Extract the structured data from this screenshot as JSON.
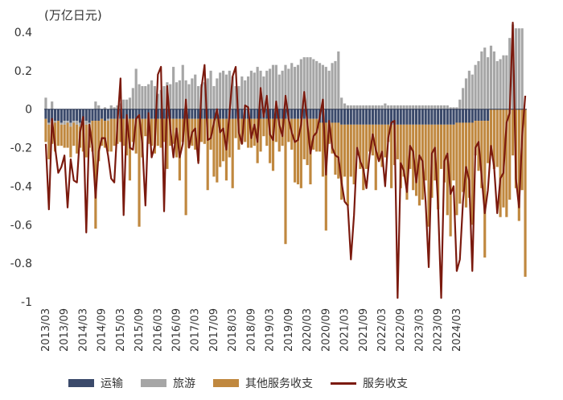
{
  "chart_data": {
    "type": "bar",
    "title": "",
    "unit_label": "(万亿日元)",
    "ylim": [
      -1.0,
      0.5
    ],
    "yticks": [
      0.4,
      0.2,
      0,
      -0.2,
      -0.4,
      -0.6,
      -0.8,
      -1
    ],
    "ytick_labels": [
      "0.4",
      "0.2",
      "0",
      "-0.2",
      "-0.4",
      "-0.6",
      "-0.8",
      "-1"
    ],
    "x_labels": [
      "2013/03",
      "2013/09",
      "2014/03",
      "2014/09",
      "2015/03",
      "2015/09",
      "2016/03",
      "2016/09",
      "2017/03",
      "2017/09",
      "2018/03",
      "2018/09",
      "2019/03",
      "2019/09",
      "2020/03",
      "2020/09",
      "2021/03",
      "2021/09",
      "2022/03",
      "2022/09",
      "2023/03",
      "2023/09",
      "2024/03"
    ],
    "series": [
      {
        "name": "运输",
        "kind": "stacked-bar",
        "color": "#3b4a6b"
      },
      {
        "name": "旅游",
        "kind": "stacked-bar",
        "color": "#a6a6a6"
      },
      {
        "name": "其他服务收支",
        "kind": "stacked-bar",
        "color": "#c0883f"
      },
      {
        "name": "服务收支",
        "kind": "line",
        "color": "#7b1a0e"
      }
    ],
    "series_values": {
      "transport": [
        -0.05,
        -0.07,
        -0.06,
        -0.06,
        -0.06,
        -0.07,
        -0.06,
        -0.06,
        -0.07,
        -0.06,
        -0.06,
        -0.07,
        -0.06,
        -0.06,
        -0.07,
        -0.06,
        -0.06,
        -0.06,
        -0.05,
        -0.06,
        -0.05,
        -0.05,
        -0.05,
        -0.05,
        -0.05,
        -0.05,
        -0.05,
        -0.05,
        -0.05,
        -0.05,
        -0.05,
        -0.05,
        -0.05,
        -0.05,
        -0.05,
        -0.05,
        -0.05,
        -0.05,
        -0.05,
        -0.05,
        -0.05,
        -0.05,
        -0.05,
        -0.05,
        -0.05,
        -0.05,
        -0.05,
        -0.05,
        -0.05,
        -0.05,
        -0.05,
        -0.05,
        -0.05,
        -0.05,
        -0.05,
        -0.05,
        -0.05,
        -0.05,
        -0.05,
        -0.05,
        -0.05,
        -0.05,
        -0.05,
        -0.05,
        -0.05,
        -0.05,
        -0.05,
        -0.05,
        -0.05,
        -0.05,
        -0.05,
        -0.05,
        -0.05,
        -0.05,
        -0.05,
        -0.05,
        -0.05,
        -0.05,
        -0.05,
        -0.05,
        -0.05,
        -0.05,
        -0.05,
        -0.05,
        -0.05,
        -0.05,
        -0.05,
        -0.05,
        -0.07,
        -0.07,
        -0.07,
        -0.07,
        -0.07,
        -0.07,
        -0.07,
        -0.08,
        -0.08,
        -0.08,
        -0.08,
        -0.08,
        -0.08,
        -0.08,
        -0.08,
        -0.08,
        -0.08,
        -0.08,
        -0.08,
        -0.08,
        -0.08,
        -0.08,
        -0.08,
        -0.08,
        -0.08,
        -0.08,
        -0.08,
        -0.08,
        -0.08,
        -0.08,
        -0.08,
        -0.08,
        -0.08,
        -0.08,
        -0.08,
        -0.08,
        -0.08,
        -0.08,
        -0.08,
        -0.08,
        -0.08,
        -0.08,
        -0.08,
        -0.08,
        -0.07,
        -0.07,
        -0.07,
        -0.07,
        -0.07,
        -0.07,
        -0.06,
        -0.06,
        -0.06,
        -0.06,
        -0.06
      ],
      "travel": [
        0.06,
        -0.01,
        0.04,
        -0.01,
        0.0,
        -0.01,
        -0.02,
        -0.01,
        -0.02,
        -0.01,
        -0.02,
        -0.02,
        -0.01,
        -0.02,
        -0.01,
        0.0,
        0.04,
        0.02,
        0.0,
        0.01,
        -0.01,
        0.02,
        0.01,
        0.02,
        0.03,
        0.05,
        0.05,
        0.06,
        0.11,
        0.21,
        0.13,
        0.12,
        0.12,
        0.13,
        0.15,
        0.12,
        0.08,
        0.1,
        0.12,
        0.14,
        0.13,
        0.22,
        0.14,
        0.15,
        0.23,
        0.15,
        0.13,
        0.16,
        0.18,
        0.12,
        0.13,
        0.14,
        0.16,
        0.2,
        0.12,
        0.16,
        0.19,
        0.2,
        0.18,
        0.2,
        0.17,
        0.12,
        0.12,
        0.17,
        0.15,
        0.17,
        0.2,
        0.19,
        0.22,
        0.2,
        0.17,
        0.2,
        0.21,
        0.23,
        0.23,
        0.18,
        0.2,
        0.23,
        0.21,
        0.24,
        0.22,
        0.23,
        0.26,
        0.27,
        0.27,
        0.27,
        0.26,
        0.25,
        0.24,
        0.23,
        0.22,
        0.2,
        0.24,
        0.25,
        0.3,
        0.06,
        0.03,
        0.02,
        0.02,
        0.02,
        0.02,
        0.02,
        0.02,
        0.02,
        0.02,
        0.02,
        0.02,
        0.02,
        0.02,
        0.03,
        0.02,
        0.02,
        0.02,
        0.02,
        0.02,
        0.02,
        0.02,
        0.02,
        0.02,
        0.02,
        0.02,
        0.02,
        0.02,
        0.02,
        0.02,
        0.02,
        0.02,
        0.02,
        0.02,
        0.02,
        0.01,
        0.01,
        0.01,
        0.05,
        0.11,
        0.16,
        0.2,
        0.18,
        0.23,
        0.25,
        0.3,
        0.32,
        0.27,
        0.33,
        0.3,
        0.25,
        0.26,
        0.28,
        0.28,
        0.37,
        0.44,
        0.42,
        0.42,
        0.42
      ],
      "other": [
        -0.12,
        -0.18,
        -0.12,
        -0.15,
        -0.13,
        -0.11,
        -0.12,
        -0.13,
        -0.16,
        -0.12,
        -0.15,
        -0.11,
        -0.15,
        -0.17,
        -0.12,
        -0.16,
        -0.56,
        -0.21,
        -0.14,
        -0.14,
        -0.16,
        -0.17,
        -0.14,
        -0.13,
        -0.12,
        -0.14,
        -0.19,
        -0.32,
        -0.12,
        -0.18,
        -0.56,
        -0.2,
        -0.09,
        -0.13,
        -0.14,
        -0.18,
        -0.14,
        -0.15,
        -0.12,
        -0.26,
        -0.14,
        -0.13,
        -0.2,
        -0.32,
        -0.12,
        -0.5,
        -0.15,
        -0.14,
        -0.16,
        -0.22,
        -0.12,
        -0.13,
        -0.37,
        -0.16,
        -0.3,
        -0.33,
        -0.25,
        -0.22,
        -0.32,
        -0.2,
        -0.36,
        -0.1,
        -0.16,
        -0.13,
        -0.12,
        -0.15,
        -0.15,
        -0.14,
        -0.23,
        -0.17,
        -0.09,
        -0.14,
        -0.23,
        -0.27,
        -0.12,
        -0.17,
        -0.14,
        -0.65,
        -0.12,
        -0.16,
        -0.33,
        -0.34,
        -0.36,
        -0.21,
        -0.24,
        -0.34,
        -0.16,
        -0.17,
        -0.15,
        -0.28,
        -0.56,
        -0.11,
        -0.16,
        -0.27,
        -0.29,
        -0.39,
        -0.27,
        -0.42,
        -0.27,
        -0.31,
        -0.16,
        -0.23,
        -0.34,
        -0.23,
        -0.14,
        -0.16,
        -0.34,
        -0.17,
        -0.22,
        -0.17,
        -0.09,
        -0.33,
        -0.21,
        -0.18,
        -0.33,
        -0.27,
        -0.39,
        -0.23,
        -0.34,
        -0.37,
        -0.42,
        -0.39,
        -0.29,
        -0.53,
        -0.38,
        -0.29,
        -0.44,
        -0.23,
        -0.3,
        -0.47,
        -0.58,
        -0.29,
        -0.48,
        -0.42,
        -0.36,
        -0.44,
        -0.39,
        -0.53,
        -0.18,
        -0.26,
        -0.35,
        -0.71,
        -0.22,
        -0.24,
        -0.31,
        -0.3,
        -0.56,
        -0.51,
        -0.56,
        -0.47,
        -0.24,
        -0.41,
        -0.58,
        -0.42,
        -0.87,
        -0.44,
        -0.41,
        -0.35,
        -0.35
      ],
      "total": [
        -0.18,
        -0.52,
        -0.05,
        -0.2,
        -0.33,
        -0.3,
        -0.24,
        -0.51,
        -0.26,
        -0.37,
        -0.38,
        -0.12,
        -0.04,
        -0.64,
        -0.08,
        -0.2,
        -0.46,
        -0.22,
        -0.15,
        -0.15,
        -0.24,
        -0.36,
        -0.38,
        -0.08,
        0.16,
        -0.55,
        -0.03,
        -0.2,
        -0.21,
        -0.05,
        -0.03,
        -0.18,
        -0.5,
        -0.02,
        -0.25,
        -0.19,
        0.18,
        0.22,
        -0.53,
        0.12,
        -0.1,
        -0.25,
        -0.1,
        -0.25,
        -0.18,
        0.05,
        -0.2,
        -0.12,
        -0.1,
        -0.28,
        0.11,
        0.23,
        -0.16,
        -0.15,
        -0.07,
        0.0,
        -0.12,
        -0.1,
        -0.21,
        -0.02,
        0.17,
        0.22,
        -0.12,
        -0.18,
        0.02,
        0.01,
        -0.15,
        -0.08,
        -0.17,
        0.11,
        -0.04,
        0.07,
        -0.13,
        -0.16,
        0.04,
        -0.08,
        -0.14,
        0.07,
        -0.05,
        -0.12,
        -0.17,
        -0.16,
        -0.08,
        0.09,
        -0.07,
        -0.23,
        -0.14,
        -0.12,
        -0.04,
        0.05,
        -0.34,
        -0.06,
        -0.2,
        -0.24,
        -0.25,
        -0.38,
        -0.48,
        -0.5,
        -0.78,
        -0.55,
        -0.2,
        -0.27,
        -0.31,
        -0.41,
        -0.24,
        -0.13,
        -0.21,
        -0.27,
        -0.22,
        -0.4,
        -0.15,
        -0.07,
        -0.06,
        -0.98,
        -0.28,
        -0.32,
        -0.43,
        -0.19,
        -0.22,
        -0.38,
        -0.24,
        -0.27,
        -0.48,
        -0.82,
        -0.23,
        -0.2,
        -0.5,
        -0.98,
        -0.27,
        -0.23,
        -0.44,
        -0.4,
        -0.84,
        -0.78,
        -0.48,
        -0.3,
        -0.37,
        -0.84,
        -0.2,
        -0.17,
        -0.35,
        -0.54,
        -0.42,
        -0.19,
        -0.3,
        -0.54,
        -0.36,
        -0.33,
        -0.07,
        -0.02,
        0.45,
        -0.36,
        -0.51,
        -0.14,
        0.07
      ]
    }
  },
  "legend": {
    "transport": "运输",
    "travel": "旅游",
    "other": "其他服务收支",
    "total": "服务收支"
  },
  "colors": {
    "transport": "#3b4a6b",
    "travel": "#a6a6a6",
    "other": "#c0883f",
    "total": "#7b1a0e",
    "axis_text": "#333333"
  }
}
